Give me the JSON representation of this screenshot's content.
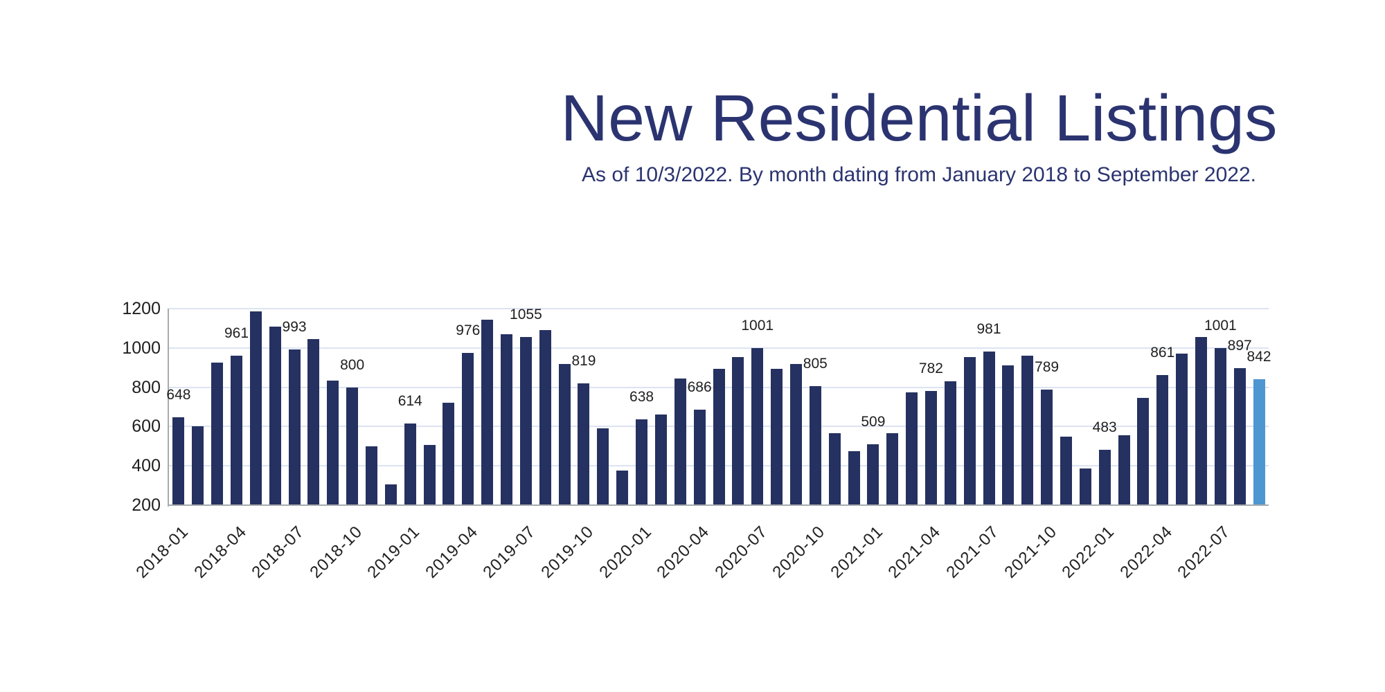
{
  "header": {
    "title": "New Residential Listings",
    "subtitle": "As of 10/3/2022. By month dating from January 2018 to September 2022.",
    "title_color": "#2b3470"
  },
  "chart_data": {
    "type": "bar",
    "title": "New Residential Listings",
    "subtitle": "As of 10/3/2022. By month dating from January 2018 to September 2022.",
    "categories": [
      "2018-01",
      "2018-02",
      "2018-03",
      "2018-04",
      "2018-05",
      "2018-06",
      "2018-07",
      "2018-08",
      "2018-09",
      "2018-10",
      "2018-11",
      "2018-12",
      "2019-01",
      "2019-02",
      "2019-03",
      "2019-04",
      "2019-05",
      "2019-06",
      "2019-07",
      "2019-08",
      "2019-09",
      "2019-10",
      "2019-11",
      "2019-12",
      "2020-01",
      "2020-02",
      "2020-03",
      "2020-04",
      "2020-05",
      "2020-06",
      "2020-07",
      "2020-08",
      "2020-09",
      "2020-10",
      "2020-11",
      "2020-12",
      "2021-01",
      "2021-02",
      "2021-03",
      "2021-04",
      "2021-05",
      "2021-06",
      "2021-07",
      "2021-08",
      "2021-09",
      "2021-10",
      "2021-11",
      "2021-12",
      "2022-01",
      "2022-02",
      "2022-03",
      "2022-04",
      "2022-05",
      "2022-06",
      "2022-07",
      "2022-08",
      "2022-09"
    ],
    "values": [
      648,
      600,
      925,
      961,
      1185,
      1110,
      993,
      1045,
      833,
      800,
      500,
      305,
      614,
      505,
      720,
      976,
      1145,
      1070,
      1055,
      1090,
      920,
      819,
      590,
      375,
      638,
      660,
      845,
      686,
      895,
      955,
      1001,
      895,
      920,
      805,
      565,
      475,
      509,
      565,
      775,
      782,
      830,
      955,
      981,
      910,
      960,
      789,
      550,
      385,
      483,
      555,
      745,
      861,
      970,
      1055,
      1001,
      897,
      842
    ],
    "label_indices": [
      0,
      3,
      6,
      9,
      12,
      15,
      18,
      21,
      24,
      27,
      30,
      33,
      36,
      39,
      42,
      45,
      48,
      51,
      54,
      55,
      56
    ],
    "x_tick_labels": [
      "2018-01",
      "2018-04",
      "2018-07",
      "2018-10",
      "2019-01",
      "2019-04",
      "2019-07",
      "2019-10",
      "2020-01",
      "2020-04",
      "2020-07",
      "2020-10",
      "2021-01",
      "2021-04",
      "2021-07",
      "2021-10",
      "2022-01",
      "2022-04",
      "2022-07"
    ],
    "y_ticks": [
      200,
      400,
      600,
      800,
      1000,
      1200
    ],
    "ylim": [
      200,
      1200
    ],
    "grid": true,
    "legend": "none",
    "bar_color": "#253160",
    "highlight_color": "#4d96d2",
    "highlight_index": 56,
    "gridline_color": "#dce3f1",
    "axis_color": "#a7aaad"
  }
}
